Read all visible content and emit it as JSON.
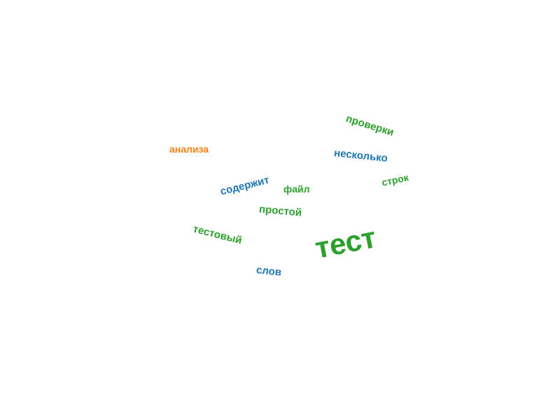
{
  "palette": {
    "green": "#2ca02c",
    "blue": "#1f77b4",
    "orange": "#ff7f0e",
    "background": "#ffffff"
  },
  "words": [
    {
      "text": "проверки",
      "color": "green"
    },
    {
      "text": "анализа",
      "color": "orange"
    },
    {
      "text": "несколько",
      "color": "blue"
    },
    {
      "text": "строк",
      "color": "green"
    },
    {
      "text": "содержит",
      "color": "blue"
    },
    {
      "text": "файл",
      "color": "green"
    },
    {
      "text": "простой",
      "color": "green"
    },
    {
      "text": "тестовый",
      "color": "green"
    },
    {
      "text": "тест",
      "color": "green"
    },
    {
      "text": "слов",
      "color": "blue"
    }
  ]
}
